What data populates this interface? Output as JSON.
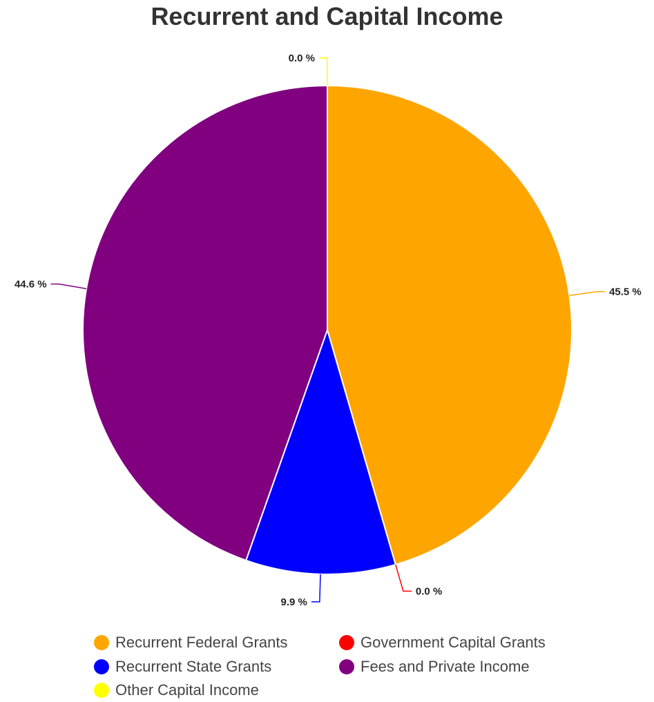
{
  "chart_data": {
    "type": "pie",
    "title": "Recurrent and Capital Income",
    "categories": [
      "Recurrent Federal Grants",
      "Government Capital Grants",
      "Recurrent State Grants",
      "Fees and Private Income",
      "Other Capital Income"
    ],
    "values": [
      45.5,
      0.0,
      9.9,
      44.6,
      0.0
    ],
    "data_labels": [
      "45.5 %",
      "0.0 %",
      "9.9 %",
      "44.6 %",
      "0.0 %"
    ],
    "colors": [
      "#FFA500",
      "#FF0000",
      "#0000FF",
      "#800080",
      "#FFFF00"
    ],
    "legend_position": "bottom",
    "start_angle": "top, clockwise"
  }
}
